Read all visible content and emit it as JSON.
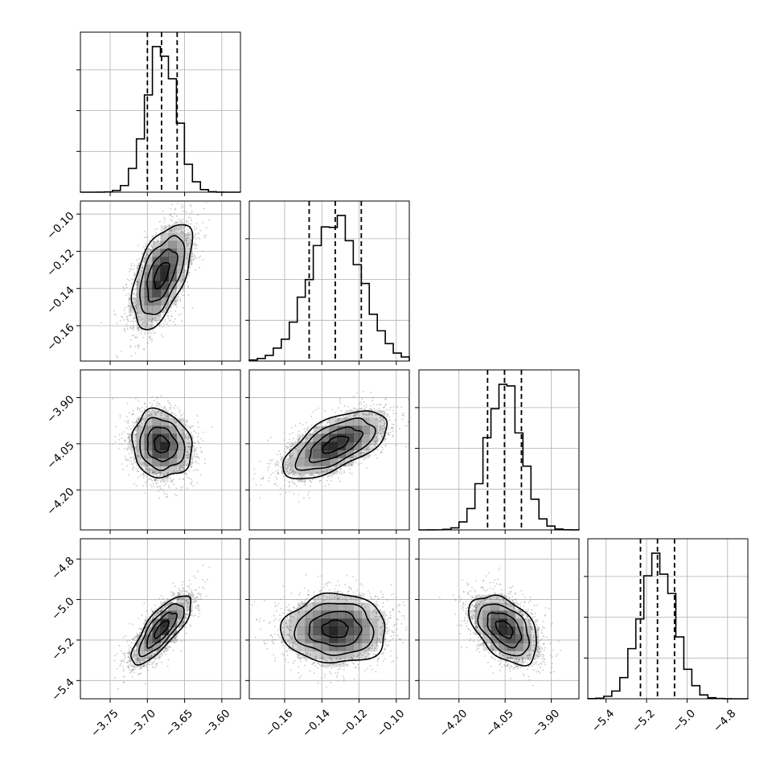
{
  "chart_data": {
    "type": "corner",
    "n_params": 4,
    "parameters": [
      {
        "index": 0,
        "median": -3.681,
        "q16": -3.7,
        "q84": -3.66,
        "sigma": 0.02,
        "range": [
          -3.79,
          -3.575
        ],
        "tick_values": [
          -3.75,
          -3.7,
          -3.65,
          -3.6
        ],
        "tick_labels": [
          "−3.75",
          "−3.70",
          "−3.65",
          "−3.60"
        ]
      },
      {
        "index": 1,
        "median": -0.1328,
        "q16": -0.1468,
        "q84": -0.1188,
        "sigma": 0.014,
        "range": [
          -0.179,
          -0.093
        ],
        "tick_values": [
          -0.16,
          -0.14,
          -0.12,
          -0.1
        ],
        "tick_labels": [
          "−0.16",
          "−0.14",
          "−0.12",
          "−0.10"
        ]
      },
      {
        "index": 2,
        "median": -4.052,
        "q16": -4.107,
        "q84": -3.997,
        "sigma": 0.055,
        "range": [
          -4.33,
          -3.81
        ],
        "tick_values": [
          -4.2,
          -4.05,
          -3.9
        ],
        "tick_labels": [
          "−4.20",
          "−4.05",
          "−3.90"
        ]
      },
      {
        "index": 3,
        "median": -5.146,
        "q16": -5.23,
        "q84": -5.062,
        "sigma": 0.085,
        "range": [
          -5.49,
          -4.7
        ],
        "tick_values": [
          -5.4,
          -5.2,
          -5.0,
          -4.8
        ],
        "tick_labels": [
          "−5.4",
          "−5.2",
          "−5.0",
          "−4.8"
        ]
      }
    ],
    "correlations": [
      {
        "pair": [
          0,
          1
        ],
        "rho": 0.55
      },
      {
        "pair": [
          0,
          2
        ],
        "rho": -0.12
      },
      {
        "pair": [
          1,
          2
        ],
        "rho": 0.62
      },
      {
        "pair": [
          0,
          3
        ],
        "rho": 0.78
      },
      {
        "pair": [
          1,
          3
        ],
        "rho": 0.0
      },
      {
        "pair": [
          2,
          3
        ],
        "rho": -0.45
      }
    ],
    "histogram_bins": 20,
    "quantile_lines": [
      0.16,
      0.5,
      0.84
    ],
    "contour_levels_sigma": [
      0.5,
      1.0,
      1.5,
      2.0
    ],
    "grid": true,
    "colors": {
      "line": "#000000",
      "points": "#9a9a9a",
      "grid": "#b0b0b0",
      "axes": "#000000",
      "density": "#000000"
    }
  }
}
